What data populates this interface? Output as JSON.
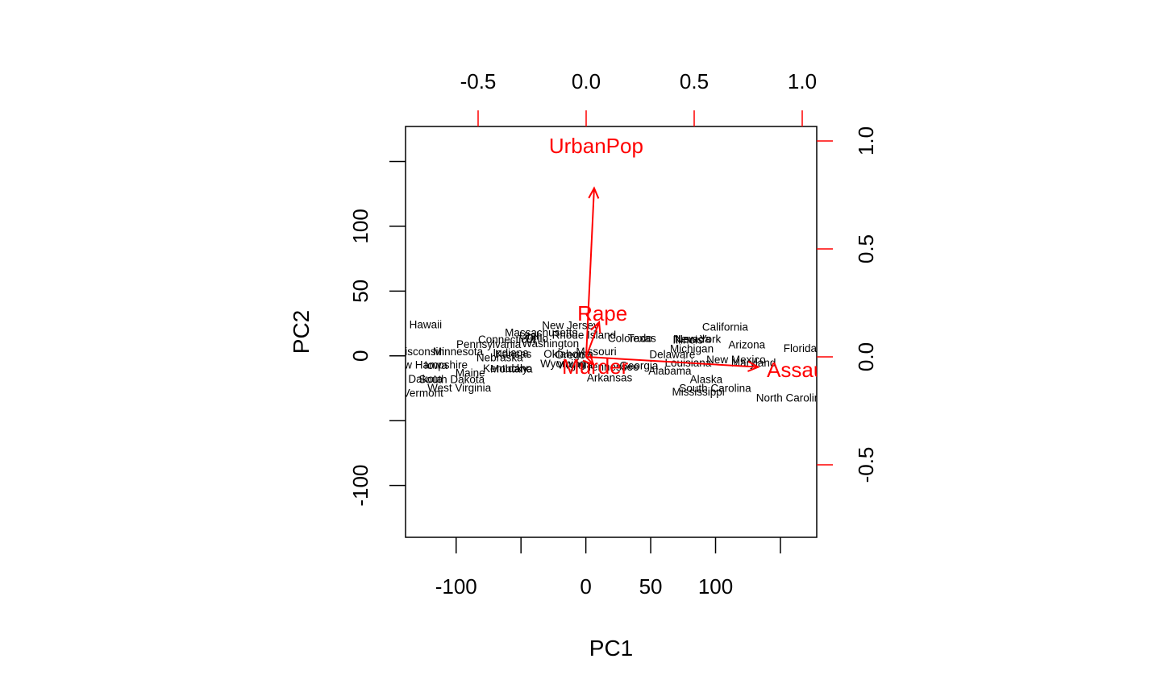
{
  "chart_data": {
    "type": "scatter",
    "subtype": "biplot",
    "xlabel": "PC1",
    "ylabel": "PC2",
    "xlim": [
      -139,
      178
    ],
    "ylim": [
      -140,
      177
    ],
    "x_ticks": [
      -100,
      -50,
      0,
      50,
      100,
      150
    ],
    "x_tick_labels": [
      "-100",
      "",
      "0",
      "50",
      "100",
      ""
    ],
    "y_ticks": [
      -150,
      -100,
      -50,
      0,
      50,
      100,
      150
    ],
    "y_tick_labels": [
      "",
      "-100",
      "",
      "0",
      "50",
      "100",
      ""
    ],
    "top_axis": {
      "ticks": [
        -0.5,
        0.0,
        0.5,
        1.0
      ],
      "tick_labels": [
        "-0.5",
        "0.0",
        "0.5",
        "1.0"
      ],
      "color": "#ff0000"
    },
    "right_axis": {
      "ticks": [
        -0.5,
        0.0,
        0.5,
        1.0
      ],
      "tick_labels": [
        "-0.5",
        "0.0",
        "0.5",
        "1.0"
      ],
      "color": "#ff0000"
    },
    "grid": false,
    "observations": [
      {
        "label": "Alabama",
        "x": 64.8,
        "y": -11.4
      },
      {
        "label": "Alaska",
        "x": 92.8,
        "y": -17.9
      },
      {
        "label": "Arizona",
        "x": 124.1,
        "y": 8.8
      },
      {
        "label": "Arkansas",
        "x": 18.3,
        "y": -16.7
      },
      {
        "label": "California",
        "x": 107.4,
        "y": 22.5
      },
      {
        "label": "Colorado",
        "x": 34.0,
        "y": 13.7
      },
      {
        "label": "Connecticut",
        "x": -60.9,
        "y": 12.9
      },
      {
        "label": "Delaware",
        "x": 66.7,
        "y": 1.4
      },
      {
        "label": "Florida",
        "x": 165.2,
        "y": 6.0
      },
      {
        "label": "Georgia",
        "x": 40.9,
        "y": -7.3
      },
      {
        "label": "Hawaii",
        "x": -123.5,
        "y": 24.4
      },
      {
        "label": "Idaho",
        "x": -51.9,
        "y": -9.6
      },
      {
        "label": "Illinois",
        "x": 78.6,
        "y": 12.6
      },
      {
        "label": "Indiana",
        "x": -57.9,
        "y": 2.7
      },
      {
        "label": "Iowa",
        "x": -115.6,
        "y": -7.1
      },
      {
        "label": "Kansas",
        "x": -55.9,
        "y": 1.7
      },
      {
        "label": "Kentucky",
        "x": -62.1,
        "y": -9.5
      },
      {
        "label": "Louisiana",
        "x": 78.8,
        "y": -5.0
      },
      {
        "label": "Maine",
        "x": -89.1,
        "y": -13.0
      },
      {
        "label": "Maryland",
        "x": 129.3,
        "y": -5.2
      },
      {
        "label": "Massachusetts",
        "x": -34.5,
        "y": 18.3
      },
      {
        "label": "Michigan",
        "x": 81.7,
        "y": 5.8
      },
      {
        "label": "Minnesota",
        "x": -98.6,
        "y": 3.5
      },
      {
        "label": "Mississippi",
        "x": 86.7,
        "y": -27.4
      },
      {
        "label": "Missouri",
        "x": 8.0,
        "y": 3.6
      },
      {
        "label": "Montana",
        "x": -57.4,
        "y": -9.8
      },
      {
        "label": "Nebraska",
        "x": -66.4,
        "y": -1.2
      },
      {
        "label": "Nevada",
        "x": 81.8,
        "y": 13.2
      },
      {
        "label": "New Hampshire",
        "x": -121.0,
        "y": -6.7
      },
      {
        "label": "New Jersey",
        "x": -11.9,
        "y": 23.8
      },
      {
        "label": "New Mexico",
        "x": 115.8,
        "y": -2.5
      },
      {
        "label": "New York",
        "x": 86.5,
        "y": 13.2
      },
      {
        "label": "North Carolina",
        "x": 158.3,
        "y": -32.3
      },
      {
        "label": "North Dakota",
        "x": -135.0,
        "y": -17.6
      },
      {
        "label": "Ohio",
        "x": -37.8,
        "y": 13.9
      },
      {
        "label": "Oklahoma",
        "x": -13.4,
        "y": 1.6
      },
      {
        "label": "Oregon",
        "x": -9.6,
        "y": 1.1
      },
      {
        "label": "Pennsylvania",
        "x": -74.9,
        "y": 9.3
      },
      {
        "label": "Rhode Island",
        "x": -1.4,
        "y": 16.3
      },
      {
        "label": "South Carolina",
        "x": 99.7,
        "y": -24.6
      },
      {
        "label": "South Dakota",
        "x": -103.4,
        "y": -17.9
      },
      {
        "label": "Tennessee",
        "x": 20.7,
        "y": -8.1
      },
      {
        "label": "Texas",
        "x": 43.2,
        "y": 13.8
      },
      {
        "label": "Utah",
        "x": -42.5,
        "y": 15.7
      },
      {
        "label": "Vermont",
        "x": -125.5,
        "y": -28.5
      },
      {
        "label": "Virginia",
        "x": -8.6,
        "y": -6.7
      },
      {
        "label": "Washington",
        "x": -27.3,
        "y": 9.8
      },
      {
        "label": "West Virginia",
        "x": -97.6,
        "y": -24.3
      },
      {
        "label": "Wisconsin",
        "x": -128.3,
        "y": 3.5
      },
      {
        "label": "Wyoming",
        "x": -17.7,
        "y": -5.8
      }
    ],
    "loadings": [
      {
        "label": "Murder",
        "pc1": 0.0417,
        "pc2": -0.0448
      },
      {
        "label": "Assault",
        "pc1": 0.9952,
        "pc2": -0.0588
      },
      {
        "label": "UrbanPop",
        "pc1": 0.0463,
        "pc2": 0.9769
      },
      {
        "label": "Rape",
        "pc1": 0.0752,
        "pc2": 0.2007
      }
    ],
    "colors": {
      "points": "#000000",
      "arrows": "#ff0000"
    }
  }
}
